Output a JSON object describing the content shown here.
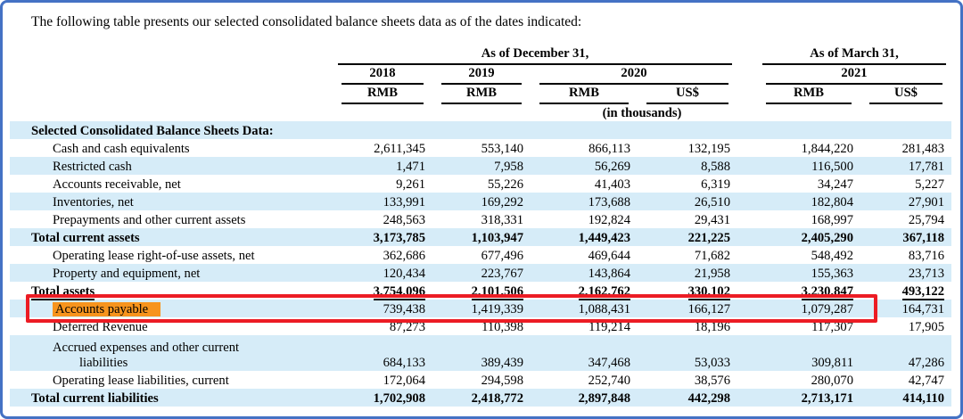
{
  "intro": "The following table presents our selected consolidated balance sheets data as of the dates indicated:",
  "table": {
    "group_headers": [
      {
        "label": "As of December 31,"
      },
      {
        "label": "As of March 31,"
      }
    ],
    "year_headers": [
      "2018",
      "2019",
      "2020",
      "2021"
    ],
    "currency_headers": [
      "RMB",
      "RMB",
      "RMB",
      "US$",
      "RMB",
      "US$"
    ],
    "units_note": "(in thousands)",
    "rows": [
      {
        "label": "Selected Consolidated Balance Sheets Data:",
        "indent": 0,
        "bold": true,
        "shade": true,
        "section": true,
        "values": [
          "",
          "",
          "",
          "",
          "",
          ""
        ]
      },
      {
        "label": "Cash and cash equivalents",
        "indent": 1,
        "shade": false,
        "values": [
          "2,611,345",
          "553,140",
          "866,113",
          "132,195",
          "1,844,220",
          "281,483"
        ]
      },
      {
        "label": "Restricted cash",
        "indent": 1,
        "shade": true,
        "values": [
          "1,471",
          "7,958",
          "56,269",
          "8,588",
          "116,500",
          "17,781"
        ]
      },
      {
        "label": "Accounts receivable, net",
        "indent": 1,
        "shade": false,
        "values": [
          "9,261",
          "55,226",
          "41,403",
          "6,319",
          "34,247",
          "5,227"
        ]
      },
      {
        "label": "Inventories, net",
        "indent": 1,
        "shade": true,
        "values": [
          "133,991",
          "169,292",
          "173,688",
          "26,510",
          "182,804",
          "27,901"
        ]
      },
      {
        "label": "Prepayments and other current assets",
        "indent": 1,
        "shade": false,
        "values": [
          "248,563",
          "318,331",
          "192,824",
          "29,431",
          "168,997",
          "25,794"
        ]
      },
      {
        "label": "Total current assets",
        "indent": 0,
        "bold": true,
        "shade": true,
        "values": [
          "3,173,785",
          "1,103,947",
          "1,449,423",
          "221,225",
          "2,405,290",
          "367,118"
        ]
      },
      {
        "label": "Operating lease right-of-use assets, net",
        "indent": 1,
        "shade": false,
        "values": [
          "362,686",
          "677,496",
          "469,644",
          "71,682",
          "548,492",
          "83,716"
        ]
      },
      {
        "label": "Property and equipment, net",
        "indent": 1,
        "shade": true,
        "values": [
          "120,434",
          "223,767",
          "143,864",
          "21,958",
          "155,363",
          "23,713"
        ]
      },
      {
        "label": "Total assets",
        "indent": 0,
        "bold": true,
        "underline": true,
        "shade": false,
        "values": [
          "3,754,096",
          "2,101,506",
          "2,162,762",
          "330,102",
          "3,230,847",
          "493,122"
        ]
      },
      {
        "label": "Accounts payable",
        "indent": 1,
        "shade": true,
        "highlighted": true,
        "values": [
          "739,438",
          "1,419,339",
          "1,088,431",
          "166,127",
          "1,079,287",
          "164,731"
        ]
      },
      {
        "label": "Deferred Revenue",
        "indent": 1,
        "shade": false,
        "values": [
          "87,273",
          "110,398",
          "119,214",
          "18,196",
          "117,307",
          "17,905"
        ]
      },
      {
        "label": "Accrued expenses and other current",
        "label2": "liabilities",
        "indent": 1,
        "shade": true,
        "values": [
          "684,133",
          "389,439",
          "347,468",
          "53,033",
          "309,811",
          "47,286"
        ]
      },
      {
        "label": "Operating lease liabilities, current",
        "indent": 1,
        "shade": false,
        "values": [
          "172,064",
          "294,598",
          "252,740",
          "38,576",
          "280,070",
          "42,747"
        ]
      },
      {
        "label": "Total current liabilities",
        "indent": 0,
        "bold": true,
        "shade": true,
        "values": [
          "1,702,908",
          "2,418,772",
          "2,897,848",
          "442,298",
          "2,713,171",
          "414,110"
        ]
      }
    ]
  },
  "annotations": {
    "highlighted_row_label": "Accounts payable",
    "label_highlight_color": "#F7941D",
    "outline_box_color": "#EC1C24"
  },
  "colors": {
    "frame_border": "#4472C4",
    "zebra_row": "#D6ECF8"
  }
}
